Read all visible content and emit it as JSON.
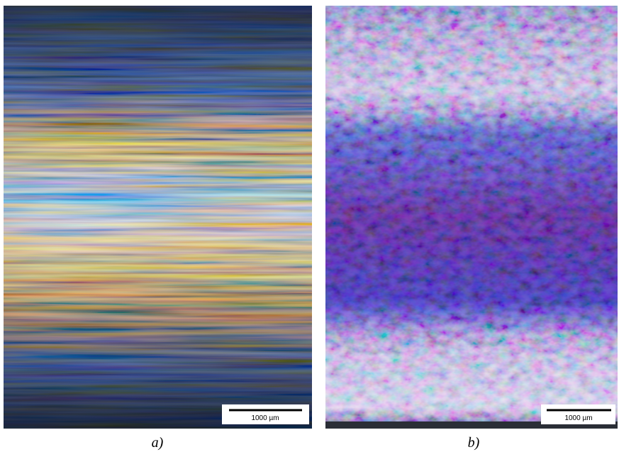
{
  "panels": [
    {
      "scale_bar": "1000 µm",
      "caption": "a)"
    },
    {
      "scale_bar": "1000 µm",
      "caption": "b)"
    }
  ]
}
